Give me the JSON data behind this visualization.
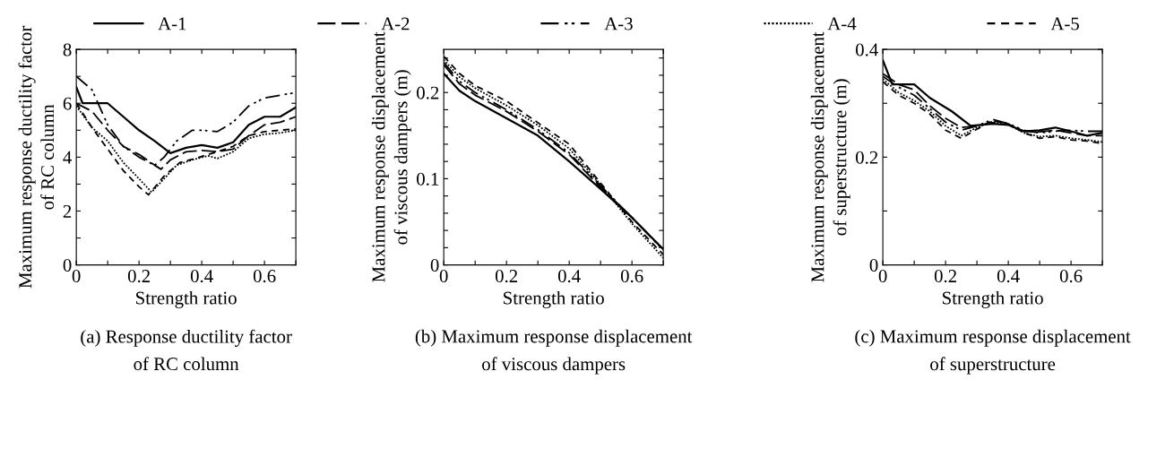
{
  "chart_data": [
    {
      "type": "line",
      "xlabel": "Strength ratio",
      "ylabel": "Maximum response ductility factor\nof RC column",
      "annotations": [
        "(a) Response ductility factor\nof RC column"
      ],
      "legend": "top",
      "xlim": [
        0,
        0.7
      ],
      "xticks": [
        0,
        {
          "value": 0.1,
          "label": null
        },
        0.2,
        {
          "value": 0.3,
          "label": null
        },
        0.4,
        {
          "value": 0.5,
          "label": null
        },
        0.6,
        {
          "value": 0.7,
          "label": null
        }
      ],
      "ylim": [
        0,
        8
      ],
      "yticks": [
        0,
        {
          "value": 1,
          "label": null
        },
        2,
        {
          "value": 3,
          "label": null
        },
        4,
        {
          "value": 5,
          "label": null
        },
        6,
        {
          "value": 7,
          "label": null
        },
        8
      ],
      "series": [
        {
          "name": "A-1",
          "color": "#000000",
          "line_style": "solid",
          "x": [
            0,
            0.02,
            0.05,
            0.1,
            0.15,
            0.2,
            0.25,
            0.3,
            0.35,
            0.4,
            0.45,
            0.5,
            0.55,
            0.6,
            0.65,
            0.7
          ],
          "values": [
            6.6,
            6.0,
            6.0,
            6.0,
            5.5,
            5.0,
            4.6,
            4.15,
            4.35,
            4.45,
            4.35,
            4.55,
            5.2,
            5.5,
            5.5,
            5.85
          ]
        },
        {
          "name": "A-2",
          "color": "#000000",
          "line_style": "dashed",
          "x": [
            0,
            0.05,
            0.1,
            0.15,
            0.2,
            0.25,
            0.27,
            0.3,
            0.35,
            0.4,
            0.45,
            0.5,
            0.55,
            0.6,
            0.65,
            0.7
          ],
          "values": [
            6.0,
            5.7,
            5.0,
            4.4,
            4.1,
            3.7,
            3.55,
            3.9,
            4.2,
            4.25,
            4.2,
            4.3,
            4.8,
            5.2,
            5.3,
            5.5
          ]
        },
        {
          "name": "A-3",
          "color": "#000000",
          "line_style": "dashdot",
          "x": [
            0,
            0.05,
            0.1,
            0.15,
            0.2,
            0.25,
            0.28,
            0.32,
            0.37,
            0.4,
            0.45,
            0.5,
            0.55,
            0.6,
            0.65,
            0.7
          ],
          "values": [
            7.0,
            6.5,
            5.2,
            4.4,
            4.0,
            3.7,
            4.0,
            4.6,
            5.0,
            5.0,
            4.95,
            5.3,
            5.9,
            6.2,
            6.3,
            6.4
          ]
        },
        {
          "name": "A-4",
          "color": "#000000",
          "line_style": "dotted",
          "x": [
            0,
            0.05,
            0.1,
            0.15,
            0.2,
            0.24,
            0.28,
            0.32,
            0.37,
            0.42,
            0.45,
            0.5,
            0.55,
            0.6,
            0.65,
            0.7
          ],
          "values": [
            5.9,
            5.1,
            4.6,
            3.8,
            3.2,
            2.7,
            3.2,
            3.7,
            3.9,
            4.05,
            3.95,
            4.2,
            4.7,
            4.85,
            4.9,
            5.0
          ]
        },
        {
          "name": "A-5",
          "color": "#000000",
          "line_style": "short dashed",
          "x": [
            0,
            0.05,
            0.1,
            0.15,
            0.2,
            0.23,
            0.28,
            0.33,
            0.38,
            0.42,
            0.45,
            0.5,
            0.55,
            0.6,
            0.65,
            0.7
          ],
          "values": [
            6.0,
            5.1,
            4.3,
            3.5,
            2.9,
            2.6,
            3.3,
            3.8,
            3.95,
            4.1,
            4.2,
            4.4,
            4.8,
            4.95,
            5.0,
            5.05
          ]
        }
      ]
    },
    {
      "type": "line",
      "xlabel": "Strength ratio",
      "ylabel": "Maximum response displacement\nof viscous dampers (m)",
      "annotations": [
        "(b) Maximum response displacement\nof viscous dampers"
      ],
      "xlim": [
        0,
        0.7
      ],
      "xticks": [
        0,
        {
          "value": 0.1,
          "label": null
        },
        0.2,
        {
          "value": 0.3,
          "label": null
        },
        0.4,
        {
          "value": 0.5,
          "label": null
        },
        0.6,
        {
          "value": 0.7,
          "label": null
        }
      ],
      "ylim": [
        0,
        0.25
      ],
      "yticks": [
        0,
        {
          "value": 0.02,
          "label": null
        },
        {
          "value": 0.04,
          "label": null
        },
        {
          "value": 0.06,
          "label": null
        },
        {
          "value": 0.08,
          "label": null
        },
        0.1,
        {
          "value": 0.12,
          "label": null
        },
        {
          "value": 0.14,
          "label": null
        },
        {
          "value": 0.16,
          "label": null
        },
        {
          "value": 0.18,
          "label": null
        },
        0.2,
        {
          "value": 0.22,
          "label": null
        },
        {
          "value": 0.24,
          "label": null
        }
      ],
      "series": [
        {
          "name": "A-1",
          "color": "#000000",
          "line_style": "solid",
          "x": [
            0,
            0.05,
            0.1,
            0.2,
            0.3,
            0.4,
            0.5,
            0.6,
            0.7
          ],
          "values": [
            0.222,
            0.202,
            0.19,
            0.17,
            0.15,
            0.12,
            0.088,
            0.055,
            0.018
          ]
        },
        {
          "name": "A-2",
          "color": "#000000",
          "line_style": "dashed",
          "x": [
            0,
            0.05,
            0.1,
            0.2,
            0.3,
            0.4,
            0.5,
            0.6,
            0.7
          ],
          "values": [
            0.232,
            0.21,
            0.197,
            0.178,
            0.155,
            0.128,
            0.09,
            0.055,
            0.018
          ]
        },
        {
          "name": "A-3",
          "color": "#000000",
          "line_style": "dashdot",
          "x": [
            0,
            0.05,
            0.1,
            0.2,
            0.3,
            0.4,
            0.5,
            0.6,
            0.7
          ],
          "values": [
            0.235,
            0.213,
            0.2,
            0.18,
            0.157,
            0.13,
            0.092,
            0.055,
            0.017
          ]
        },
        {
          "name": "A-4",
          "color": "#000000",
          "line_style": "dotted",
          "x": [
            0,
            0.05,
            0.1,
            0.2,
            0.3,
            0.4,
            0.5,
            0.6,
            0.7
          ],
          "values": [
            0.238,
            0.218,
            0.205,
            0.185,
            0.162,
            0.135,
            0.093,
            0.048,
            0.008
          ]
        },
        {
          "name": "A-5",
          "color": "#000000",
          "line_style": "short dashed",
          "x": [
            0,
            0.05,
            0.1,
            0.2,
            0.3,
            0.4,
            0.5,
            0.6,
            0.7
          ],
          "values": [
            0.242,
            0.222,
            0.208,
            0.19,
            0.165,
            0.14,
            0.095,
            0.05,
            0.012
          ]
        }
      ]
    },
    {
      "type": "line",
      "xlabel": "Strength ratio",
      "ylabel": "Maximum response displacement\nof superstructure (m)",
      "annotations": [
        "(c) Maximum response displacement\nof superstructure"
      ],
      "xlim": [
        0,
        0.7
      ],
      "xticks": [
        0,
        {
          "value": 0.1,
          "label": null
        },
        0.2,
        {
          "value": 0.3,
          "label": null
        },
        0.4,
        {
          "value": 0.5,
          "label": null
        },
        0.6,
        {
          "value": 0.7,
          "label": null
        }
      ],
      "ylim": [
        0,
        0.4
      ],
      "yticks": [
        0,
        {
          "value": 0.1,
          "label": null
        },
        0.2,
        {
          "value": 0.3,
          "label": null
        },
        0.4
      ],
      "series": [
        {
          "name": "A-1",
          "color": "#000000",
          "line_style": "solid",
          "x": [
            0,
            0.03,
            0.1,
            0.15,
            0.22,
            0.28,
            0.35,
            0.4,
            0.45,
            0.5,
            0.55,
            0.6,
            0.65,
            0.7
          ],
          "values": [
            0.38,
            0.335,
            0.335,
            0.31,
            0.285,
            0.258,
            0.262,
            0.26,
            0.248,
            0.25,
            0.255,
            0.248,
            0.24,
            0.245
          ]
        },
        {
          "name": "A-2",
          "color": "#000000",
          "line_style": "dashed",
          "x": [
            0,
            0.05,
            0.1,
            0.15,
            0.2,
            0.25,
            0.3,
            0.35,
            0.4,
            0.45,
            0.5,
            0.55,
            0.6,
            0.65,
            0.7
          ],
          "values": [
            0.355,
            0.335,
            0.325,
            0.295,
            0.272,
            0.255,
            0.258,
            0.264,
            0.26,
            0.248,
            0.247,
            0.25,
            0.245,
            0.24,
            0.24
          ]
        },
        {
          "name": "A-3",
          "color": "#000000",
          "line_style": "dashdot",
          "x": [
            0,
            0.05,
            0.1,
            0.15,
            0.2,
            0.25,
            0.3,
            0.35,
            0.4,
            0.45,
            0.5,
            0.55,
            0.6,
            0.65,
            0.7
          ],
          "values": [
            0.35,
            0.33,
            0.315,
            0.29,
            0.265,
            0.25,
            0.258,
            0.27,
            0.262,
            0.25,
            0.245,
            0.248,
            0.25,
            0.248,
            0.248
          ]
        },
        {
          "name": "A-4",
          "color": "#000000",
          "line_style": "dotted",
          "x": [
            0,
            0.05,
            0.1,
            0.15,
            0.2,
            0.25,
            0.3,
            0.35,
            0.4,
            0.45,
            0.5,
            0.55,
            0.6,
            0.65,
            0.7
          ],
          "values": [
            0.345,
            0.32,
            0.305,
            0.285,
            0.258,
            0.24,
            0.255,
            0.266,
            0.26,
            0.245,
            0.238,
            0.24,
            0.235,
            0.232,
            0.228
          ]
        },
        {
          "name": "A-5",
          "color": "#000000",
          "line_style": "short dashed",
          "x": [
            0,
            0.05,
            0.1,
            0.15,
            0.2,
            0.25,
            0.3,
            0.35,
            0.4,
            0.45,
            0.5,
            0.55,
            0.6,
            0.65,
            0.7
          ],
          "values": [
            0.34,
            0.315,
            0.3,
            0.28,
            0.25,
            0.235,
            0.252,
            0.268,
            0.262,
            0.245,
            0.235,
            0.238,
            0.232,
            0.23,
            0.225
          ]
        }
      ]
    }
  ]
}
